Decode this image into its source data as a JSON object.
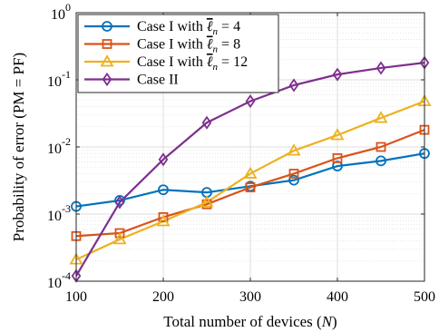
{
  "chart_data": {
    "type": "line",
    "xlabel_main": "Total number of devices (",
    "xlabel_var": "N",
    "xlabel_end": ")",
    "ylabel": "Probability of error (PM = PF)",
    "yscale": "log",
    "xlim": [
      100,
      500
    ],
    "ylim": [
      0.0001,
      1
    ],
    "grid": true,
    "legend_position": "top-left",
    "x": [
      100,
      150,
      200,
      250,
      300,
      350,
      400,
      450,
      500
    ],
    "xticks": [
      "100",
      "200",
      "300",
      "400",
      "500"
    ],
    "yticks": [
      {
        "mant": "10",
        "exp": "-4"
      },
      {
        "mant": "10",
        "exp": "-3"
      },
      {
        "mant": "10",
        "exp": "-2"
      },
      {
        "mant": "10",
        "exp": "-1"
      },
      {
        "mant": "10",
        "exp": "0"
      }
    ],
    "series": [
      {
        "label_prefix": "Case I with ",
        "label_eq": " = 4",
        "color": "#0072BD",
        "marker": "circle",
        "values": [
          0.0013,
          0.0016,
          0.0023,
          0.0021,
          0.0026,
          0.0032,
          0.0052,
          0.0062,
          0.008
        ]
      },
      {
        "label_prefix": "Case I with ",
        "label_eq": " = 8",
        "color": "#D95319",
        "marker": "square",
        "values": [
          0.00047,
          0.00052,
          0.0009,
          0.0014,
          0.0025,
          0.004,
          0.0068,
          0.01,
          0.018
        ]
      },
      {
        "label_prefix": "Case I with ",
        "label_eq": " = 12",
        "color": "#EDB120",
        "marker": "triangle",
        "values": [
          0.00021,
          0.00042,
          0.00078,
          0.0015,
          0.004,
          0.0088,
          0.015,
          0.027,
          0.048
        ]
      },
      {
        "label_prefix": "Case II",
        "label_eq": "",
        "color": "#7E2F8E",
        "marker": "diamond",
        "values": [
          0.00012,
          0.0015,
          0.0065,
          0.023,
          0.048,
          0.083,
          0.12,
          0.15,
          0.18
        ]
      }
    ]
  }
}
